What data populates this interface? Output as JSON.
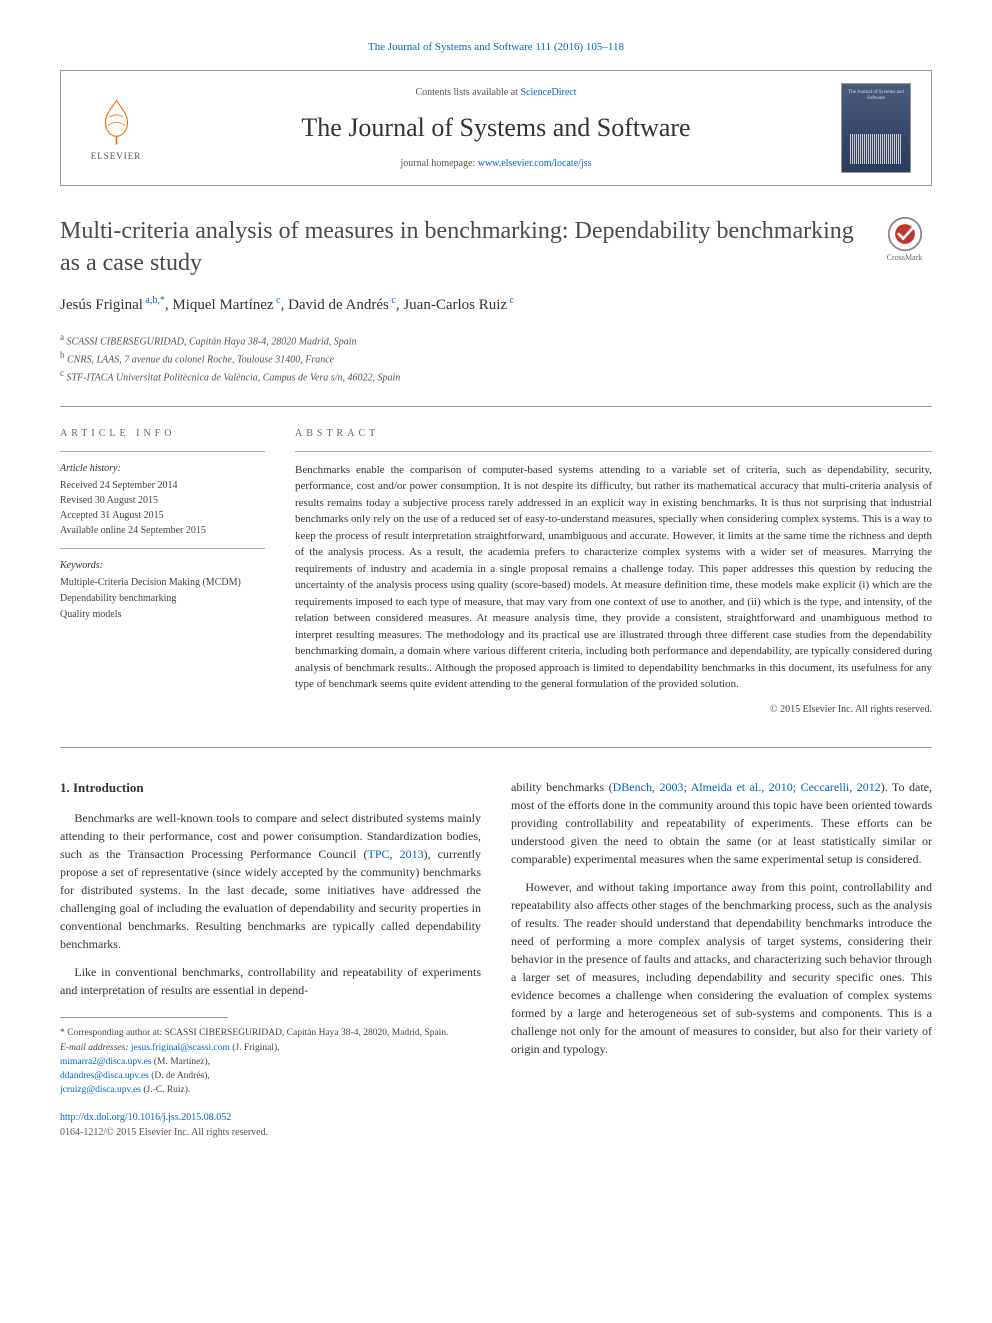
{
  "header": {
    "top_link_text": "The Journal of Systems and Software 111 (2016) 105–118",
    "contents_prefix": "Contents lists available at ",
    "contents_link": "ScienceDirect",
    "journal_name": "The Journal of Systems and Software",
    "homepage_prefix": "journal homepage: ",
    "homepage_link": "www.elsevier.com/locate/jss",
    "elsevier_label": "ELSEVIER",
    "cover_label": "The Journal of Systems and Software",
    "crossmark_label": "CrossMark"
  },
  "article": {
    "title": "Multi-criteria analysis of measures in benchmarking: Dependability benchmarking as a case study",
    "authors_html": "Jesús Friginal<sup> a,b,*</sup>, Miquel Martínez<sup> c</sup>, David de Andrés<sup> c</sup>, Juan-Carlos Ruiz<sup> c</sup>",
    "affiliations": {
      "a": "SCASSI CIBERSEGURIDAD, Capitán Haya 38-4, 28020 Madrid, Spain",
      "b": "CNRS, LAAS, 7 avenue du colonel Roche, Toulouse 31400, France",
      "c": "STF-ITACA Universitat Politècnica de València, Campus de Vera s/n, 46022, Spain"
    }
  },
  "info": {
    "heading": "article info",
    "history_heading": "Article history:",
    "history": [
      "Received 24 September 2014",
      "Revised 30 August 2015",
      "Accepted 31 August 2015",
      "Available online 24 September 2015"
    ],
    "keywords_heading": "Keywords:",
    "keywords": [
      "Multiple-Criteria Decision Making (MCDM)",
      "Dependability benchmarking",
      "Quality models"
    ]
  },
  "abstract": {
    "heading": "abstract",
    "body": "Benchmarks enable the comparison of computer-based systems attending to a variable set of criteria, such as dependability, security, performance, cost and/or power consumption. It is not despite its difficulty, but rather its mathematical accuracy that multi-criteria analysis of results remains today a subjective process rarely addressed in an explicit way in existing benchmarks. It is thus not surprising that industrial benchmarks only rely on the use of a reduced set of easy-to-understand measures, specially when considering complex systems. This is a way to keep the process of result interpretation straightforward, unambiguous and accurate. However, it limits at the same time the richness and depth of the analysis process. As a result, the academia prefers to characterize complex systems with a wider set of measures. Marrying the requirements of industry and academia in a single proposal remains a challenge today. This paper addresses this question by reducing the uncertainty of the analysis process using quality (score-based) models. At measure definition time, these models make explicit (i) which are the requirements imposed to each type of measure, that may vary from one context of use to another, and (ii) which is the type, and intensity, of the relation between considered measures. At measure analysis time, they provide a consistent, straightforward and unambiguous method to interpret resulting measures. The methodology and its practical use are illustrated through three different case studies from the dependability benchmarking domain, a domain where various different criteria, including both performance and dependability, are typically considered during analysis of benchmark results.. Although the proposed approach is limited to dependability benchmarks in this document, its usefulness for any type of benchmark seems quite evident attending to the general formulation of the provided solution.",
    "copyright": "© 2015 Elsevier Inc. All rights reserved."
  },
  "body": {
    "section_heading": "1. Introduction",
    "col1_p1": "Benchmarks are well-known tools to compare and select distributed systems mainly attending to their performance, cost and power consumption. Standardization bodies, such as the Transaction Processing Performance Council (",
    "col1_p1_ref": "TPC, 2013",
    "col1_p1_after": "), currently propose a set of representative (since widely accepted by the community) benchmarks for distributed systems. In the last decade, some initiatives have addressed the challenging goal of including the evaluation of dependability and security properties in conventional benchmarks. Resulting benchmarks are typically called dependability benchmarks.",
    "col1_p2": "Like in conventional benchmarks, controllability and repeatability of experiments and interpretation of results are essential in depend-",
    "col2_p1_before": "ability benchmarks (",
    "col2_p1_ref": "DBench, 2003; Almeida et al., 2010; Ceccarelli, 2012",
    "col2_p1_after": "). To date, most of the efforts done in the community around this topic have been oriented towards providing controllability and repeatability of experiments. These efforts can be understood given the need to obtain the same (or at least statistically similar or comparable) experimental measures when the same experimental setup is considered.",
    "col2_p2": "However, and without taking importance away from this point, controllability and repeatability also affects other stages of the benchmarking process, such as the analysis of results. The reader should understand that dependability benchmarks introduce the need of performing a more complex analysis of target systems, considering their behavior in the presence of faults and attacks, and characterizing such behavior through a larger set of measures, including dependability and security specific ones. This evidence becomes a challenge when considering the evaluation of complex systems formed by a large and heterogeneous set of sub-systems and components. This is a challenge not only for the amount of measures to consider, but also for their variety of origin and typology."
  },
  "footnotes": {
    "corresp": "* Corresponding author at: SCASSI CIBERSEGURIDAD, Capitán Haya 38-4, 28020, Madrid, Spain.",
    "email_label": "E-mail addresses: ",
    "emails": [
      {
        "addr": "jesus.friginal@scassi.com",
        "who": " (J. Friginal),"
      },
      {
        "addr": "mimarra2@disca.upv.es",
        "who": " (M. Martínez), "
      },
      {
        "addr": "ddandres@disca.upv.es",
        "who": " (D. de Andrés), "
      },
      {
        "addr": "jcruizg@disca.upv.es",
        "who": " (J.-C. Ruiz)."
      }
    ],
    "doi": "http://dx.doi.org/10.1016/j.jss.2015.08.052",
    "doi_copy": "0164-1212/© 2015 Elsevier Inc. All rights reserved."
  },
  "colors": {
    "link": "#0066cc",
    "text": "#333333",
    "muted": "#555555",
    "orange": "#ff6600"
  }
}
